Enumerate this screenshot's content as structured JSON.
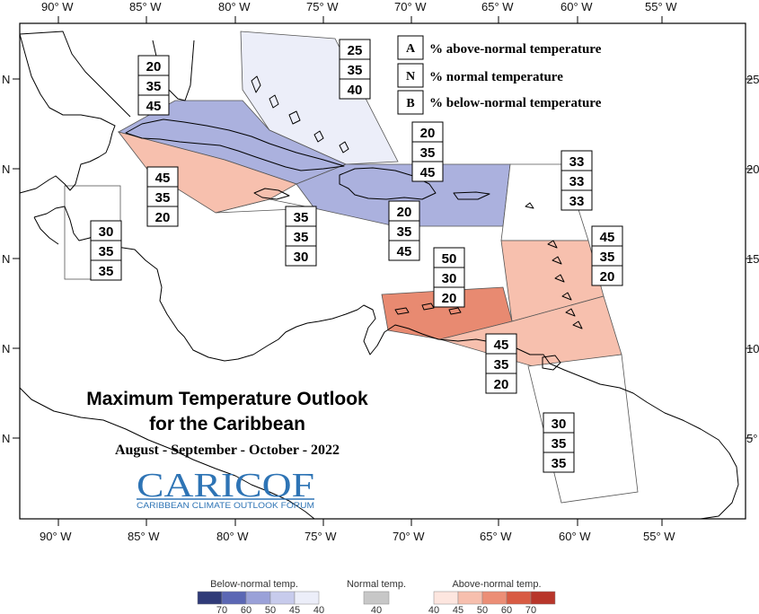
{
  "map": {
    "title_line1": "Maximum Temperature Outlook",
    "title_line2": "for the Caribbean",
    "period": "August - September - October - 2022",
    "logo": {
      "name": "CARICOF",
      "subtitle": "CARIBBEAN CLIMATE OUTLOOK FORUM"
    },
    "longitude_labels": [
      "90° W",
      "85° W",
      "80° W",
      "75° W",
      "70° W",
      "65° W",
      "60° W",
      "55° W"
    ],
    "latitude_labels_left": [
      "N",
      "N",
      "N",
      "N",
      "N"
    ],
    "latitude_labels_right": [
      "25",
      "20",
      "15",
      "10",
      "5°"
    ],
    "legend": [
      {
        "letter": "A",
        "text": "% above-normal temperature"
      },
      {
        "letter": "N",
        "text": "% normal temperature"
      },
      {
        "letter": "B",
        "text": "% below-normal temperature"
      }
    ],
    "colorbar": {
      "below_label": "Below-normal temp.",
      "normal_label": "Normal temp.",
      "above_label": "Above-normal temp.",
      "below_ticks": [
        "70",
        "60",
        "50",
        "45",
        "40"
      ],
      "normal_ticks": [
        "40"
      ],
      "above_ticks": [
        "40",
        "45",
        "50",
        "60",
        "70"
      ],
      "below_colors": [
        "#2f3a78",
        "#5b67b4",
        "#9aa1d8",
        "#c7cbec",
        "#eceef9"
      ],
      "normal_color": "#c7c7c7",
      "above_colors": [
        "#fde6df",
        "#f7bfae",
        "#ec8e76",
        "#d85b43",
        "#b8362a"
      ]
    },
    "zones": [
      {
        "id": "bahamas",
        "probs": [
          "25",
          "35",
          "40"
        ],
        "color": "#eceef9"
      },
      {
        "id": "cuba",
        "probs": [
          "20",
          "35",
          "45"
        ],
        "color": "#abb1de"
      },
      {
        "id": "jamaica-caymans",
        "probs": [
          "45",
          "35",
          "20"
        ],
        "color": "#f7c0ae"
      },
      {
        "id": "hispaniola-north",
        "probs": [
          "20",
          "35",
          "45"
        ],
        "color": "#abb1de"
      },
      {
        "id": "hispaniola-south",
        "probs": [
          "20",
          "35",
          "45"
        ],
        "color": "#abb1de"
      },
      {
        "id": "jamaica-south",
        "probs": [
          "35",
          "35",
          "30"
        ],
        "color": "#ffffff"
      },
      {
        "id": "belize",
        "probs": [
          "30",
          "35",
          "35"
        ],
        "color": "#ffffff"
      },
      {
        "id": "virgin-islands",
        "probs": [
          "33",
          "33",
          "33"
        ],
        "color": "#ffffff"
      },
      {
        "id": "leeward-islands",
        "probs": [
          "45",
          "35",
          "20"
        ],
        "color": "#f7c0ae"
      },
      {
        "id": "abc-islands",
        "probs": [
          "50",
          "30",
          "20"
        ],
        "color": "#e88a71"
      },
      {
        "id": "windward-trinidad",
        "probs": [
          "45",
          "35",
          "20"
        ],
        "color": "#f7c0ae"
      },
      {
        "id": "guianas",
        "probs": [
          "30",
          "35",
          "35"
        ],
        "color": "#ffffff"
      }
    ]
  }
}
